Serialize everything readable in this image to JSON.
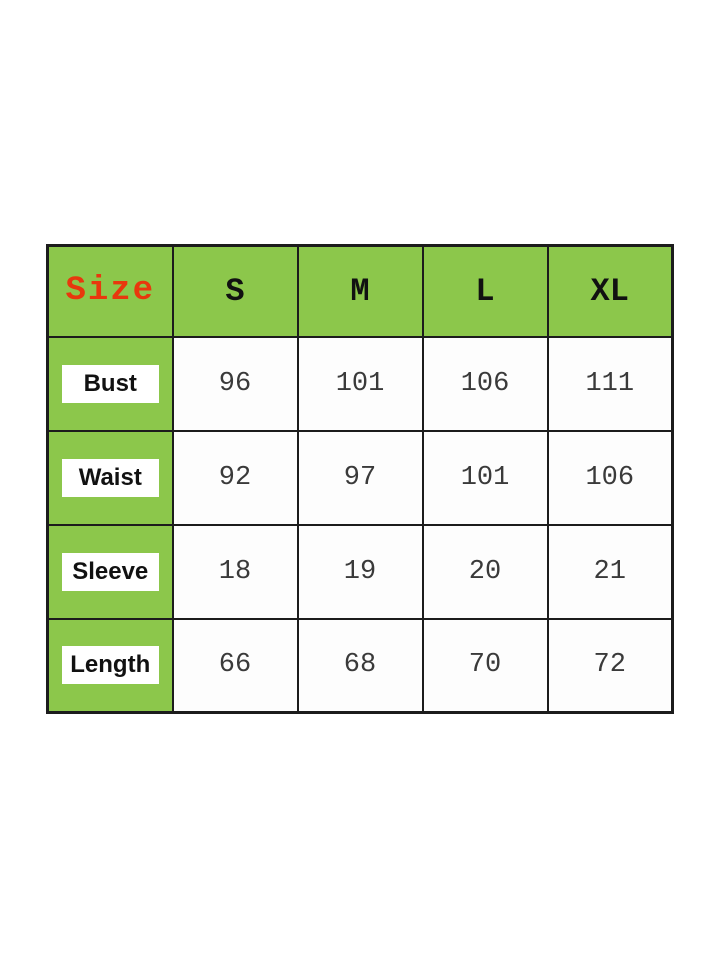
{
  "colors": {
    "green": "#8cc74b",
    "red": "#e8380d",
    "border": "#1c1c1c"
  },
  "chart_data": {
    "type": "table",
    "title": "Size",
    "columns": [
      "S",
      "M",
      "L",
      "XL"
    ],
    "rows": [
      {
        "label": "Bust",
        "values": [
          "96",
          "101",
          "106",
          "111"
        ]
      },
      {
        "label": "Waist",
        "values": [
          "92",
          "97",
          "101",
          "106"
        ]
      },
      {
        "label": "Sleeve",
        "values": [
          "18",
          "19",
          "20",
          "21"
        ]
      },
      {
        "label": "Length",
        "values": [
          "66",
          "68",
          "70",
          "72"
        ]
      }
    ]
  },
  "table": {
    "size_label": "Size",
    "columns": [
      "S",
      "M",
      "L",
      "XL"
    ],
    "rows": [
      {
        "label": "Bust",
        "values": [
          "96",
          "101",
          "106",
          "111"
        ]
      },
      {
        "label": "Waist",
        "values": [
          "92",
          "97",
          "101",
          "106"
        ]
      },
      {
        "label": "Sleeve",
        "values": [
          "18",
          "19",
          "20",
          "21"
        ]
      },
      {
        "label": "Length",
        "values": [
          "66",
          "68",
          "70",
          "72"
        ]
      }
    ]
  }
}
